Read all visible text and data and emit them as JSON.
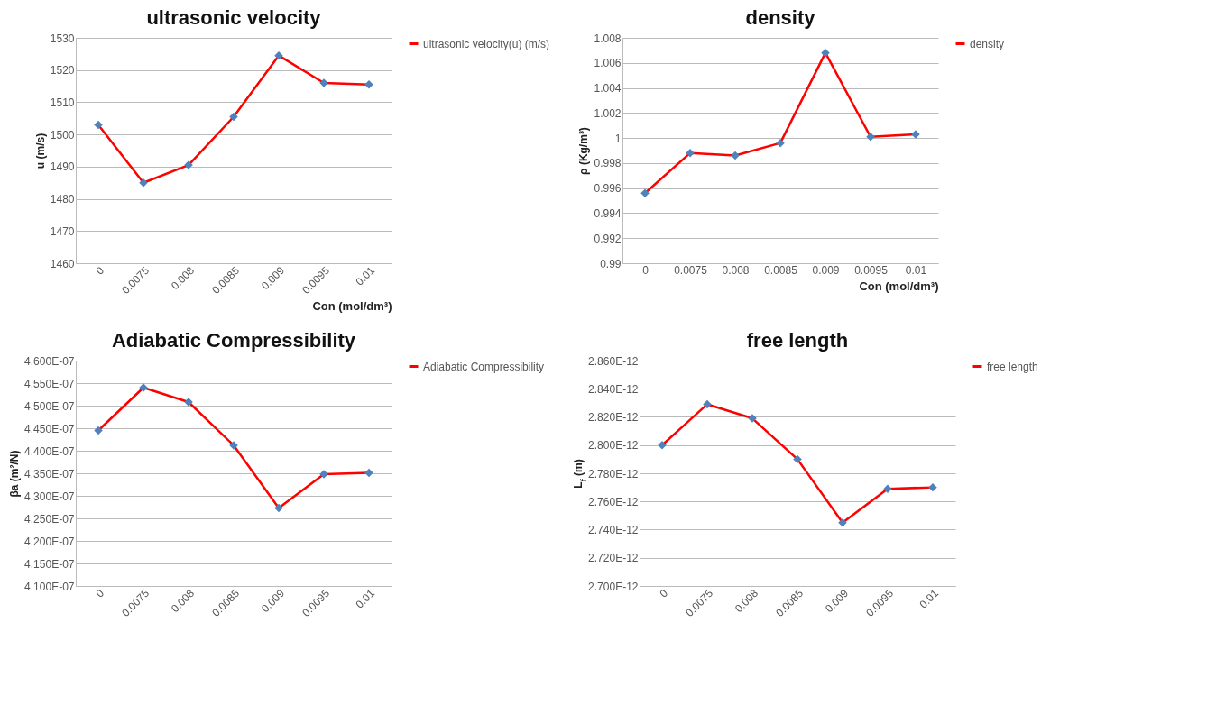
{
  "chart_data": [
    {
      "type": "line",
      "title": "ultrasonic velocity",
      "xlabel": "Con (mol/dm³)",
      "ylabel": "u (m/s)",
      "categories": [
        "0",
        "0.0075",
        "0.008",
        "0.0085",
        "0.009",
        "0.0095",
        "0.01"
      ],
      "series": [
        {
          "name": "ultrasonic velocity(u) (m/s)",
          "color": "#ff0000",
          "values": [
            1503,
            1485,
            1490.5,
            1505.5,
            1524.5,
            1516,
            1515.5
          ]
        }
      ],
      "ylim": [
        1460,
        1530
      ],
      "yticks": [
        1460,
        1470,
        1480,
        1490,
        1500,
        1510,
        1520,
        1530
      ],
      "grid": "y",
      "legend": "right",
      "marker": "diamond",
      "line_style": "solid"
    },
    {
      "type": "line",
      "title": "density",
      "xlabel": "Con (mol/dm³)",
      "ylabel": "ρ (Kg/m³)",
      "categories": [
        "0",
        "0.0075",
        "0.008",
        "0.0085",
        "0.009",
        "0.0095",
        "0.01"
      ],
      "series": [
        {
          "name": "density",
          "color": "#ff0000",
          "values": [
            0.9956,
            0.9988,
            0.9986,
            0.9996,
            1.0068,
            1.0001,
            1.0003
          ]
        }
      ],
      "ylim": [
        0.99,
        1.008
      ],
      "yticks": [
        0.99,
        0.992,
        0.994,
        0.996,
        0.998,
        1,
        1.002,
        1.004,
        1.006,
        1.008
      ],
      "grid": "y",
      "legend": "right",
      "marker": "diamond",
      "line_style": "solid"
    },
    {
      "type": "line",
      "title": "Adiabatic Compressibility",
      "ylabel": "βa  (m²/N)",
      "categories": [
        "0",
        "0.0075",
        "0.008",
        "0.0085",
        "0.009",
        "0.0095",
        "0.01"
      ],
      "series": [
        {
          "name": "Adiabatic Compressibility",
          "color": "#ff0000",
          "values": [
            4.445e-07,
            4.54e-07,
            4.508e-07,
            4.412e-07,
            4.273e-07,
            4.348e-07,
            4.351e-07
          ]
        }
      ],
      "ylim": [
        4.1e-07,
        4.6e-07
      ],
      "yticks": [
        {
          "value": 4.1e-07,
          "label": "4.100E-07"
        },
        {
          "value": 4.15e-07,
          "label": "4.150E-07"
        },
        {
          "value": 4.2e-07,
          "label": "4.200E-07"
        },
        {
          "value": 4.25e-07,
          "label": "4.250E-07"
        },
        {
          "value": 4.3e-07,
          "label": "4.300E-07"
        },
        {
          "value": 4.35e-07,
          "label": "4.350E-07"
        },
        {
          "value": 4.4e-07,
          "label": "4.400E-07"
        },
        {
          "value": 4.45e-07,
          "label": "4.450E-07"
        },
        {
          "value": 4.5e-07,
          "label": "4.500E-07"
        },
        {
          "value": 4.55e-07,
          "label": "4.550E-07"
        },
        {
          "value": 4.6e-07,
          "label": "4.600E-07"
        }
      ],
      "grid": "y",
      "legend": "right",
      "marker": "diamond",
      "line_style": "solid"
    },
    {
      "type": "line",
      "title": "free length",
      "ylabel": "L$_{f}$ (m)",
      "categories": [
        "0",
        "0.0075",
        "0.008",
        "0.0085",
        "0.009",
        "0.0095",
        "0.01"
      ],
      "series": [
        {
          "name": "free length",
          "color": "#ff0000",
          "values": [
            2.8e-12,
            2.829e-12,
            2.819e-12,
            2.79e-12,
            2.745e-12,
            2.769e-12,
            2.77e-12
          ]
        }
      ],
      "ylim": [
        2.7e-12,
        2.86e-12
      ],
      "yticks": [
        {
          "value": 2.7e-12,
          "label": "2.700E-12"
        },
        {
          "value": 2.72e-12,
          "label": "2.720E-12"
        },
        {
          "value": 2.74e-12,
          "label": "2.740E-12"
        },
        {
          "value": 2.76e-12,
          "label": "2.760E-12"
        },
        {
          "value": 2.78e-12,
          "label": "2.780E-12"
        },
        {
          "value": 2.8e-12,
          "label": "2.800E-12"
        },
        {
          "value": 2.82e-12,
          "label": "2.820E-12"
        },
        {
          "value": 2.84e-12,
          "label": "2.840E-12"
        },
        {
          "value": 2.86e-12,
          "label": "2.860E-12"
        }
      ],
      "grid": "y",
      "legend": "right",
      "marker": "diamond",
      "line_style": "solid"
    }
  ]
}
